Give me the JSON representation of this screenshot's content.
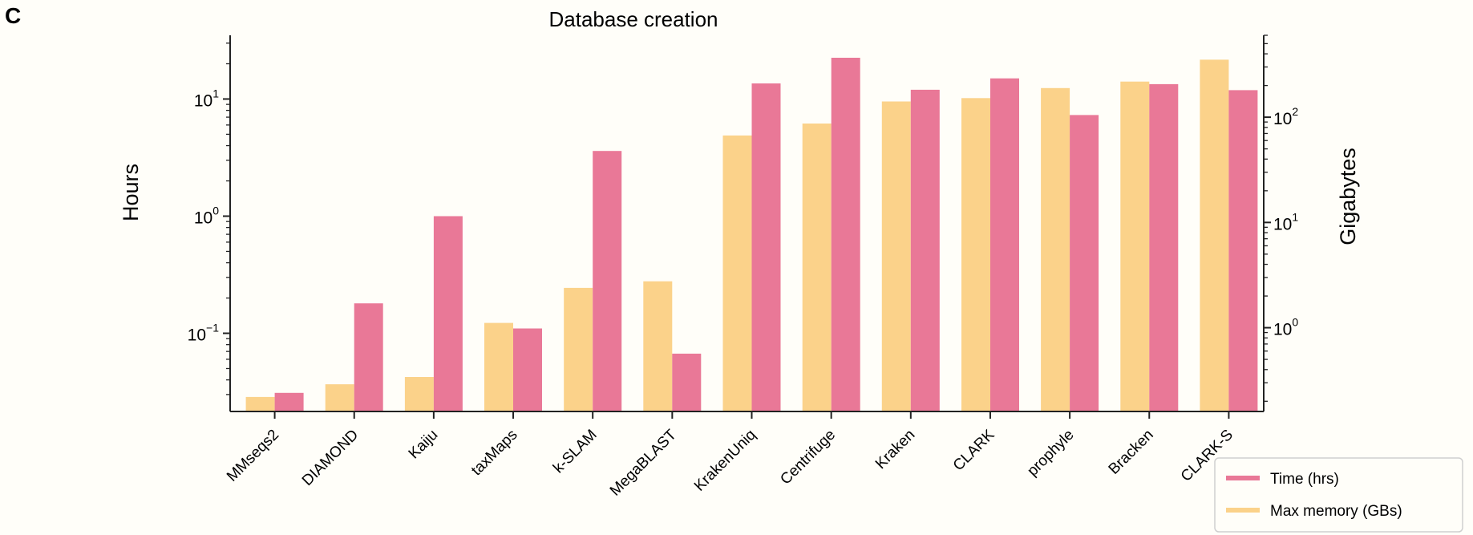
{
  "panel_label": "C",
  "chart_data": {
    "type": "bar",
    "title": "Database creation",
    "categories": [
      "MMseqs2",
      "DIAMOND",
      "Kaiju",
      "taxMaps",
      "k-SLAM",
      "MegaBLAST",
      "KrakenUniq",
      "Centrifuge",
      "Kraken",
      "CLARK",
      "prophyle",
      "Bracken",
      "CLARK-S"
    ],
    "left_axis": {
      "label": "Hours",
      "scale": "log",
      "ylim": [
        0.0215,
        35
      ],
      "ticks": [
        {
          "value": 0.1,
          "base": "10",
          "exp": "−1"
        },
        {
          "value": 1,
          "base": "10",
          "exp": "0"
        },
        {
          "value": 10,
          "base": "10",
          "exp": "1"
        }
      ]
    },
    "right_axis": {
      "label": "Gigabytes",
      "scale": "log",
      "ylim": [
        0.16,
        600
      ],
      "ticks": [
        {
          "value": 1,
          "base": "10",
          "exp": "0"
        },
        {
          "value": 10,
          "base": "10",
          "exp": "1"
        },
        {
          "value": 100,
          "base": "10",
          "exp": "2"
        }
      ]
    },
    "series": [
      {
        "name": "Max memory (GBs)",
        "axis": "right",
        "color": "#fbd28a",
        "values": [
          0.22,
          0.29,
          0.34,
          1.11,
          2.39,
          2.76,
          67,
          87,
          141,
          152,
          189,
          218,
          352
        ]
      },
      {
        "name": "Time (hrs)",
        "axis": "left",
        "color": "#e97897",
        "values": [
          0.031,
          0.18,
          1.0,
          0.11,
          3.6,
          0.067,
          13.6,
          22.5,
          12.0,
          15.0,
          7.3,
          13.4,
          11.9
        ]
      }
    ],
    "legend": {
      "position": "bottom-right",
      "entries": [
        {
          "label": "Time (hrs)",
          "color": "#e97897"
        },
        {
          "label": "Max memory (GBs)",
          "color": "#fbd28a"
        }
      ]
    }
  }
}
